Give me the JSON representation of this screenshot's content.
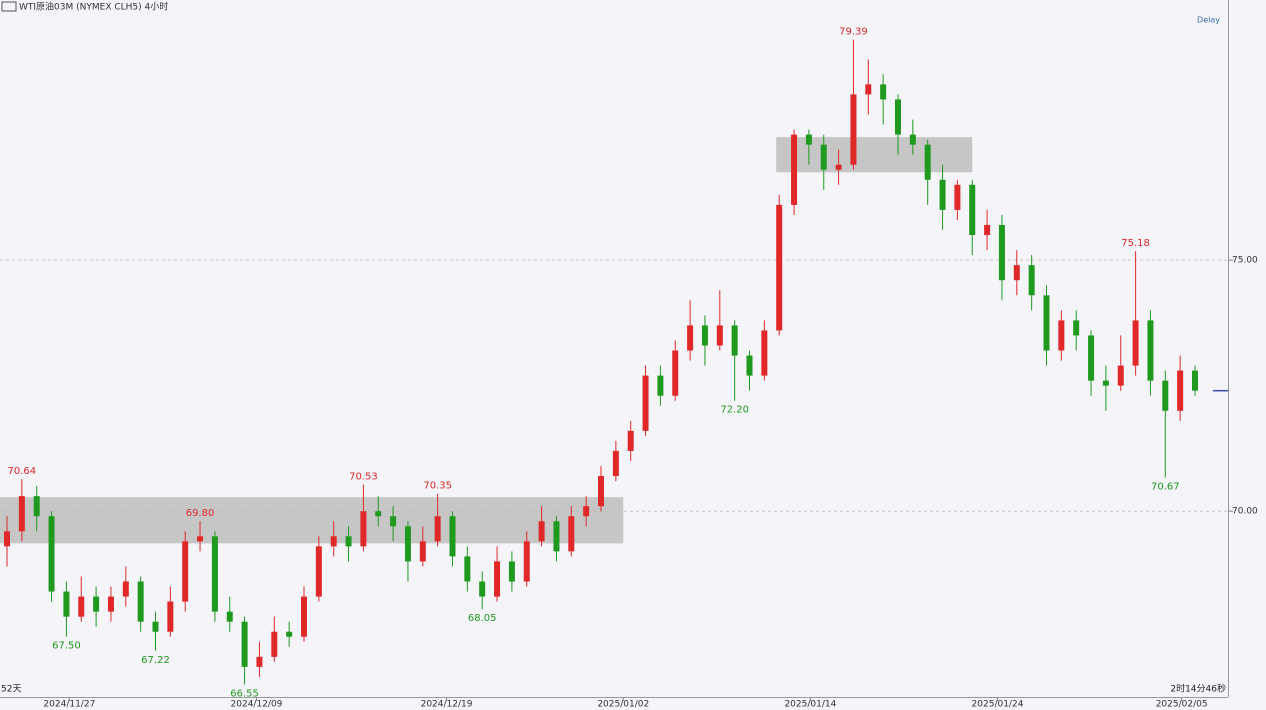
{
  "chart_data": {
    "type": "candlestick",
    "header": "WTI原油03M (NYMEX CLH5)  4小时",
    "delay_label": "Delay",
    "bottom_left": "52天",
    "bottom_right": "2时14分46秒",
    "up_color": "#e02828",
    "down_color": "#1f9a1f",
    "zone_color": "#bdbdbd",
    "last_color": "#3b49a8",
    "ylim": [
      66.3,
      80.18
    ],
    "yticks": [
      {
        "value": 70,
        "label": "70.00"
      },
      {
        "value": 75,
        "label": "75.00"
      }
    ],
    "grid": true,
    "xticks": [
      {
        "value": 4.2,
        "label": "2024/11/27"
      },
      {
        "value": 16.8,
        "label": "2024/12/09"
      },
      {
        "value": 29.6,
        "label": "2024/12/19"
      },
      {
        "value": 41.5,
        "label": "2025/01/02"
      },
      {
        "value": 54.1,
        "label": "2025/01/14"
      },
      {
        "value": 66.7,
        "label": "2025/01/24"
      },
      {
        "value": 79.1,
        "label": "2025/02/05"
      }
    ],
    "ohlc": [
      [
        69.3,
        69.9,
        68.9,
        69.6
      ],
      [
        69.6,
        70.64,
        69.4,
        70.3
      ],
      [
        70.3,
        70.5,
        69.6,
        69.9
      ],
      [
        69.9,
        70.0,
        68.2,
        68.4
      ],
      [
        68.4,
        68.6,
        67.5,
        67.9
      ],
      [
        67.9,
        68.7,
        67.8,
        68.3
      ],
      [
        68.3,
        68.5,
        67.7,
        68.0
      ],
      [
        68.0,
        68.5,
        67.8,
        68.3
      ],
      [
        68.3,
        68.9,
        68.1,
        68.6
      ],
      [
        68.6,
        68.7,
        67.6,
        67.8
      ],
      [
        67.8,
        68.0,
        67.22,
        67.6
      ],
      [
        67.6,
        68.5,
        67.5,
        68.2
      ],
      [
        68.2,
        69.6,
        68.0,
        69.4
      ],
      [
        69.4,
        69.8,
        69.2,
        69.5
      ],
      [
        69.5,
        69.6,
        67.8,
        68.0
      ],
      [
        68.0,
        68.3,
        67.6,
        67.8
      ],
      [
        67.8,
        67.9,
        66.55,
        66.9
      ],
      [
        66.9,
        67.4,
        66.7,
        67.1
      ],
      [
        67.1,
        67.9,
        67.0,
        67.6
      ],
      [
        67.6,
        67.8,
        67.3,
        67.5
      ],
      [
        67.5,
        68.5,
        67.4,
        68.3
      ],
      [
        68.3,
        69.5,
        68.2,
        69.3
      ],
      [
        69.3,
        69.8,
        69.1,
        69.5
      ],
      [
        69.5,
        69.7,
        69.0,
        69.3
      ],
      [
        69.3,
        70.53,
        69.2,
        70.0
      ],
      [
        70.0,
        70.3,
        69.7,
        69.9
      ],
      [
        69.9,
        70.1,
        69.4,
        69.7
      ],
      [
        69.7,
        69.8,
        68.6,
        69.0
      ],
      [
        69.0,
        69.7,
        68.9,
        69.4
      ],
      [
        69.4,
        70.35,
        69.3,
        69.9
      ],
      [
        69.9,
        70.0,
        68.9,
        69.1
      ],
      [
        69.1,
        69.3,
        68.4,
        68.6
      ],
      [
        68.6,
        68.8,
        68.05,
        68.3
      ],
      [
        68.3,
        69.3,
        68.2,
        69.0
      ],
      [
        69.0,
        69.2,
        68.4,
        68.6
      ],
      [
        68.6,
        69.6,
        68.5,
        69.4
      ],
      [
        69.4,
        70.1,
        69.3,
        69.8
      ],
      [
        69.8,
        69.9,
        69.0,
        69.2
      ],
      [
        69.2,
        70.1,
        69.1,
        69.9
      ],
      [
        69.9,
        70.3,
        69.7,
        70.1
      ],
      [
        70.1,
        70.9,
        70.0,
        70.7
      ],
      [
        70.7,
        71.4,
        70.6,
        71.2
      ],
      [
        71.2,
        71.8,
        71.0,
        71.6
      ],
      [
        71.6,
        72.9,
        71.5,
        72.7
      ],
      [
        72.7,
        72.9,
        72.1,
        72.3
      ],
      [
        72.3,
        73.4,
        72.2,
        73.2
      ],
      [
        73.2,
        74.2,
        73.0,
        73.7
      ],
      [
        73.7,
        73.9,
        72.9,
        73.3
      ],
      [
        73.3,
        74.4,
        73.2,
        73.7
      ],
      [
        73.7,
        73.8,
        72.2,
        73.1
      ],
      [
        73.1,
        73.2,
        72.4,
        72.7
      ],
      [
        72.7,
        73.8,
        72.6,
        73.6
      ],
      [
        73.6,
        76.3,
        73.5,
        76.1
      ],
      [
        76.1,
        77.6,
        75.9,
        77.5
      ],
      [
        77.5,
        77.6,
        76.9,
        77.3
      ],
      [
        77.3,
        77.5,
        76.4,
        76.8
      ],
      [
        76.8,
        77.2,
        76.5,
        76.9
      ],
      [
        76.9,
        79.39,
        76.8,
        78.3
      ],
      [
        78.3,
        79.0,
        77.9,
        78.5
      ],
      [
        78.5,
        78.7,
        77.7,
        78.2
      ],
      [
        78.2,
        78.3,
        77.1,
        77.5
      ],
      [
        77.5,
        77.8,
        77.1,
        77.3
      ],
      [
        77.3,
        77.4,
        76.1,
        76.6
      ],
      [
        76.6,
        76.9,
        75.6,
        76.0
      ],
      [
        76.0,
        76.6,
        75.8,
        76.5
      ],
      [
        76.5,
        76.6,
        75.1,
        75.5
      ],
      [
        75.5,
        76.0,
        75.2,
        75.7
      ],
      [
        75.7,
        75.9,
        74.2,
        74.6
      ],
      [
        74.6,
        75.2,
        74.3,
        74.9
      ],
      [
        74.9,
        75.1,
        74.0,
        74.3
      ],
      [
        74.3,
        74.5,
        72.9,
        73.2
      ],
      [
        73.2,
        74.0,
        73.0,
        73.8
      ],
      [
        73.8,
        74.0,
        73.2,
        73.5
      ],
      [
        73.5,
        73.6,
        72.3,
        72.6
      ],
      [
        72.6,
        72.9,
        72.0,
        72.5
      ],
      [
        72.5,
        73.5,
        72.4,
        72.9
      ],
      [
        72.9,
        75.18,
        72.7,
        73.8
      ],
      [
        73.8,
        74.0,
        72.3,
        72.6
      ],
      [
        72.6,
        72.8,
        70.67,
        72.0
      ],
      [
        72.0,
        73.1,
        71.8,
        72.8
      ],
      [
        72.8,
        72.9,
        72.3,
        72.4
      ]
    ],
    "annotations": [
      {
        "index": 1,
        "label": "70.64"
      },
      {
        "index": 4,
        "label": "67.50"
      },
      {
        "index": 10,
        "label": "67.22"
      },
      {
        "index": 13,
        "label": "69.80"
      },
      {
        "index": 16,
        "label": "66.55"
      },
      {
        "index": 24,
        "label": "70.53"
      },
      {
        "index": 29,
        "label": "70.35"
      },
      {
        "index": 32,
        "label": "68.05"
      },
      {
        "index": 49,
        "label": "72.20"
      },
      {
        "index": 57,
        "label": "79.39"
      },
      {
        "index": 76,
        "label": "75.18"
      },
      {
        "index": 78,
        "label": "70.67"
      }
    ],
    "zones": [
      {
        "from": -0.5,
        "to": 41.5,
        "top": 70.28,
        "bottom": 69.36
      },
      {
        "from": 51.8,
        "to": 65,
        "top": 77.45,
        "bottom": 76.75
      }
    ]
  }
}
